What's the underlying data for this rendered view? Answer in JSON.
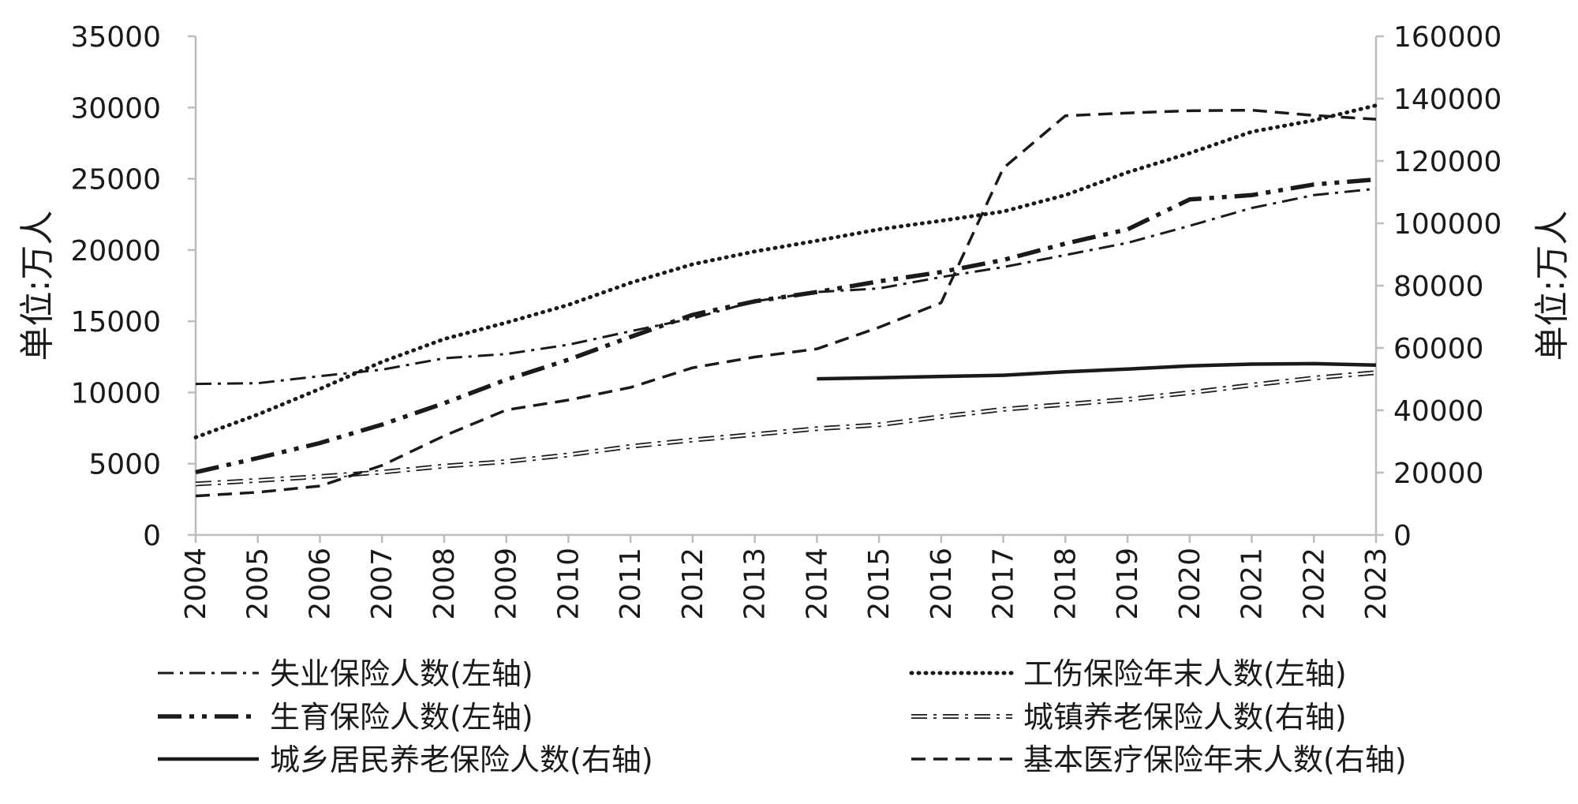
{
  "chart_data": {
    "type": "line",
    "title": "",
    "ylabel_left": "单位:万人",
    "ylabel_right": "单位:万人",
    "x": [
      "2004",
      "2005",
      "2006",
      "2007",
      "2008",
      "2009",
      "2010",
      "2011",
      "2012",
      "2013",
      "2014",
      "2015",
      "2016",
      "2017",
      "2018",
      "2019",
      "2020",
      "2021",
      "2022",
      "2023"
    ],
    "y_left_range": [
      0,
      35000
    ],
    "y_left_ticks": [
      "0",
      "5000",
      "10000",
      "15000",
      "20000",
      "25000",
      "30000",
      "35000"
    ],
    "y_right_range": [
      0,
      160000
    ],
    "y_right_ticks": [
      "0",
      "20000",
      "40000",
      "60000",
      "80000",
      "100000",
      "120000",
      "140000",
      "160000"
    ],
    "grid": false,
    "legend_position": "bottom",
    "series": [
      {
        "name": "失业保险人数(左轴)",
        "axis": "left",
        "style": "dash-dot",
        "values": [
          10600,
          10650,
          11150,
          11600,
          12400,
          12700,
          13350,
          14300,
          15200,
          16400,
          17050,
          17300,
          18100,
          18800,
          19650,
          20500,
          21700,
          22950,
          23850,
          24300
        ]
      },
      {
        "name": "工伤保险年末人数(左轴)",
        "axis": "left",
        "style": "dotted",
        "values": [
          6850,
          8450,
          10250,
          12150,
          13750,
          14900,
          16150,
          17700,
          19000,
          19900,
          20650,
          21450,
          22050,
          22700,
          23850,
          25450,
          26800,
          28300,
          29100,
          30150
        ]
      },
      {
        "name": "生育保险人数(左轴)",
        "axis": "left",
        "style": "long-dash-dot-dot",
        "values": [
          4400,
          5400,
          6450,
          7750,
          9250,
          10900,
          12300,
          13900,
          15450,
          16400,
          17050,
          17800,
          18450,
          19300,
          20450,
          21450,
          23550,
          23850,
          24600,
          24950
        ]
      },
      {
        "name": "城镇养老保险人数(右轴)",
        "axis": "right",
        "style": "hollow-dash-dot",
        "values": [
          16350,
          17500,
          18750,
          20150,
          22100,
          23550,
          25700,
          28400,
          30450,
          32250,
          34100,
          35350,
          37950,
          40300,
          41900,
          43500,
          45650,
          48100,
          50350,
          52100
        ]
      },
      {
        "name": "城乡居民养老保险人数(右轴)",
        "axis": "right",
        "style": "solid",
        "values": [
          null,
          null,
          null,
          null,
          null,
          null,
          null,
          null,
          null,
          null,
          50100,
          50450,
          50850,
          51250,
          52350,
          53250,
          54250,
          54800,
          54950,
          54500
        ]
      },
      {
        "name": "基本医疗保险年末人数(右轴)",
        "axis": "right",
        "style": "dashed",
        "values": [
          12500,
          13700,
          15700,
          22300,
          31800,
          40100,
          43300,
          47350,
          53650,
          57100,
          59700,
          66600,
          74500,
          117700,
          134500,
          135400,
          136100,
          136300,
          134600,
          133400
        ]
      }
    ]
  }
}
